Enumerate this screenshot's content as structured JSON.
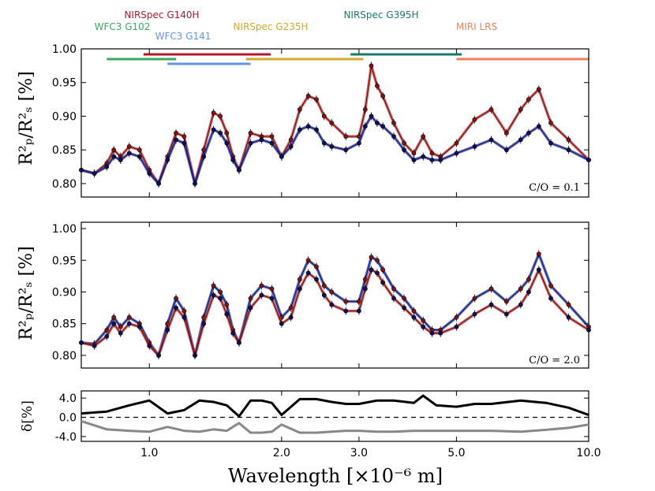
{
  "chart_data": {
    "type": "line",
    "xlabel": "Wavelength [×10⁻⁶ m]",
    "xscale": "log",
    "xlim": [
      0.7,
      10.0
    ],
    "xticks": [
      {
        "value": 1.0,
        "label": "1.0"
      },
      {
        "value": 2.0,
        "label": "2.0"
      },
      {
        "value": 3.0,
        "label": "3.0"
      },
      {
        "value": 5.0,
        "label": "5.0"
      },
      {
        "value": 10.0,
        "label": "10.0"
      }
    ],
    "instruments": [
      {
        "name": "NIRSpec G140H",
        "range": [
          0.97,
          1.89
        ],
        "color": "#b2182b"
      },
      {
        "name": "WFC3 G102",
        "range": [
          0.8,
          1.15
        ],
        "color": "#3aaa5c"
      },
      {
        "name": "WFC3 G141",
        "range": [
          1.1,
          1.7
        ],
        "color": "#6495ed"
      },
      {
        "name": "NIRSpec G235H",
        "range": [
          1.66,
          3.07
        ],
        "color": "#d4a72c"
      },
      {
        "name": "NIRSpec G395H",
        "range": [
          2.87,
          5.14
        ],
        "color": "#1a7a6e"
      },
      {
        "name": "MIRI LRS",
        "range": [
          5.0,
          10.0
        ],
        "color": "#f0825a"
      }
    ],
    "panels": [
      {
        "id": "co-0.1",
        "ylabel": "R²ₚ/R²ₛ [%]",
        "annotation": "C/O = 0.1",
        "ylim": [
          0.78,
          1.0
        ],
        "yticks": [
          "0.80",
          "0.85",
          "0.90",
          "0.95",
          "1.00"
        ],
        "x": [
          0.7,
          0.75,
          0.8,
          0.83,
          0.86,
          0.9,
          0.95,
          1.0,
          1.05,
          1.1,
          1.15,
          1.2,
          1.27,
          1.33,
          1.4,
          1.45,
          1.5,
          1.55,
          1.6,
          1.7,
          1.8,
          1.9,
          2.0,
          2.1,
          2.2,
          2.3,
          2.4,
          2.5,
          2.6,
          2.8,
          3.0,
          3.1,
          3.2,
          3.3,
          3.4,
          3.6,
          3.8,
          4.0,
          4.2,
          4.4,
          4.6,
          5.0,
          5.5,
          6.0,
          6.5,
          7.0,
          7.3,
          7.7,
          8.2,
          9.0,
          10.0
        ],
        "series": [
          {
            "name": "C/O=0.1 model (red)",
            "color": "#d62828",
            "values": [
              0.82,
              0.815,
              0.83,
              0.85,
              0.84,
              0.855,
              0.85,
              0.82,
              0.8,
              0.84,
              0.875,
              0.87,
              0.8,
              0.85,
              0.905,
              0.9,
              0.875,
              0.84,
              0.82,
              0.875,
              0.87,
              0.87,
              0.84,
              0.865,
              0.91,
              0.93,
              0.925,
              0.9,
              0.89,
              0.87,
              0.87,
              0.91,
              0.975,
              0.945,
              0.93,
              0.89,
              0.86,
              0.845,
              0.87,
              0.845,
              0.84,
              0.86,
              0.895,
              0.91,
              0.875,
              0.91,
              0.925,
              0.94,
              0.89,
              0.865,
              0.835
            ]
          },
          {
            "name": "C/O=0.1 retrieval (blue)",
            "color": "#2030c0",
            "values": [
              0.82,
              0.815,
              0.825,
              0.84,
              0.835,
              0.845,
              0.84,
              0.815,
              0.8,
              0.835,
              0.865,
              0.86,
              0.8,
              0.84,
              0.88,
              0.875,
              0.86,
              0.835,
              0.82,
              0.86,
              0.865,
              0.86,
              0.84,
              0.855,
              0.88,
              0.885,
              0.88,
              0.86,
              0.855,
              0.85,
              0.86,
              0.885,
              0.9,
              0.89,
              0.885,
              0.87,
              0.85,
              0.835,
              0.84,
              0.835,
              0.835,
              0.845,
              0.855,
              0.865,
              0.85,
              0.865,
              0.875,
              0.885,
              0.86,
              0.85,
              0.835
            ]
          }
        ]
      },
      {
        "id": "co-2.0",
        "ylabel": "R²ₚ/R²ₛ [%]",
        "annotation": "C/O = 2.0",
        "ylim": [
          0.78,
          1.01
        ],
        "yticks": [
          "0.80",
          "0.85",
          "0.90",
          "0.95",
          "1.00"
        ],
        "x": [
          0.7,
          0.75,
          0.8,
          0.83,
          0.86,
          0.9,
          0.95,
          1.0,
          1.05,
          1.1,
          1.15,
          1.2,
          1.27,
          1.33,
          1.4,
          1.45,
          1.5,
          1.55,
          1.6,
          1.7,
          1.8,
          1.9,
          2.0,
          2.1,
          2.2,
          2.3,
          2.4,
          2.5,
          2.6,
          2.8,
          3.0,
          3.1,
          3.2,
          3.3,
          3.4,
          3.6,
          3.8,
          4.0,
          4.2,
          4.4,
          4.6,
          5.0,
          5.5,
          6.0,
          6.5,
          7.0,
          7.3,
          7.7,
          8.2,
          9.0,
          10.0
        ],
        "series": [
          {
            "name": "C/O=2.0 model (blue)",
            "color": "#2030c0",
            "values": [
              0.82,
              0.818,
              0.84,
              0.86,
              0.845,
              0.86,
              0.85,
              0.82,
              0.8,
              0.85,
              0.89,
              0.87,
              0.8,
              0.86,
              0.91,
              0.9,
              0.88,
              0.84,
              0.82,
              0.89,
              0.91,
              0.905,
              0.86,
              0.875,
              0.92,
              0.95,
              0.94,
              0.91,
              0.9,
              0.885,
              0.885,
              0.92,
              0.955,
              0.95,
              0.935,
              0.905,
              0.89,
              0.87,
              0.855,
              0.84,
              0.84,
              0.86,
              0.89,
              0.905,
              0.885,
              0.905,
              0.92,
              0.96,
              0.91,
              0.88,
              0.845
            ]
          },
          {
            "name": "C/O=2.0 retrieval (red)",
            "color": "#d62828",
            "values": [
              0.82,
              0.815,
              0.83,
              0.85,
              0.835,
              0.85,
              0.845,
              0.815,
              0.8,
              0.84,
              0.875,
              0.86,
              0.8,
              0.85,
              0.895,
              0.89,
              0.865,
              0.835,
              0.82,
              0.875,
              0.895,
              0.89,
              0.85,
              0.86,
              0.905,
              0.93,
              0.92,
              0.895,
              0.88,
              0.87,
              0.87,
              0.905,
              0.935,
              0.93,
              0.915,
              0.89,
              0.875,
              0.86,
              0.845,
              0.835,
              0.835,
              0.845,
              0.865,
              0.88,
              0.865,
              0.88,
              0.9,
              0.935,
              0.89,
              0.86,
              0.84
            ]
          }
        ]
      },
      {
        "id": "residual",
        "ylabel": "δ[%]",
        "ylim": [
          -5.0,
          5.5
        ],
        "yticks": [
          "-4.0",
          "0.0",
          "4.0"
        ],
        "x": [
          0.7,
          0.8,
          0.9,
          1.0,
          1.1,
          1.2,
          1.3,
          1.4,
          1.5,
          1.6,
          1.7,
          1.8,
          1.9,
          2.0,
          2.2,
          2.4,
          2.6,
          2.8,
          3.0,
          3.3,
          3.6,
          4.0,
          4.2,
          4.5,
          5.0,
          5.5,
          6.0,
          7.0,
          8.0,
          9.0,
          10.0
        ],
        "series": [
          {
            "name": "difference (black)",
            "color": "#000000",
            "values": [
              0.8,
              1.2,
              2.5,
              3.5,
              0.8,
              1.5,
              3.5,
              3.2,
              2.5,
              0.2,
              3.5,
              3.5,
              3.0,
              0.5,
              3.8,
              3.8,
              3.2,
              2.8,
              2.8,
              3.5,
              3.5,
              3.0,
              4.5,
              2.5,
              2.2,
              2.8,
              2.8,
              3.5,
              3.0,
              2.0,
              0.5
            ]
          },
          {
            "name": "difference (gray)",
            "color": "#888888",
            "values": [
              -0.8,
              -2.5,
              -2.8,
              -3.0,
              -2.0,
              -2.8,
              -3.0,
              -2.5,
              -2.8,
              -1.2,
              -3.2,
              -3.2,
              -3.0,
              -1.5,
              -3.2,
              -3.2,
              -3.0,
              -2.8,
              -2.8,
              -3.0,
              -3.0,
              -2.8,
              -2.8,
              -2.8,
              -2.8,
              -2.8,
              -2.8,
              -3.0,
              -2.6,
              -2.2,
              -1.5
            ]
          }
        ]
      }
    ]
  }
}
